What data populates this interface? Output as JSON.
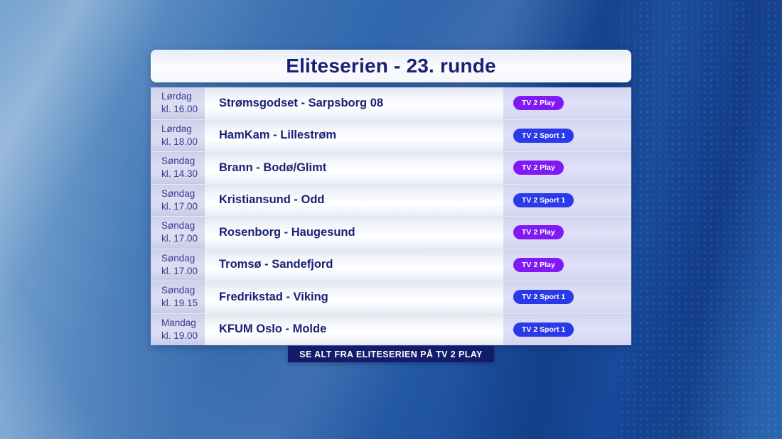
{
  "title": "Eliteserien - 23. runde",
  "schedule": [
    {
      "day": "Lørdag",
      "time": "kl. 16.00",
      "match": "Strømsgodset - Sarpsborg 08",
      "channel": "TV 2 Play",
      "channel_type": "play"
    },
    {
      "day": "Lørdag",
      "time": "kl. 18.00",
      "match": "HamKam - Lillestrøm",
      "channel": "TV 2 Sport 1",
      "channel_type": "sport1"
    },
    {
      "day": "Søndag",
      "time": "kl. 14.30",
      "match": "Brann - Bodø/Glimt",
      "channel": "TV 2 Play",
      "channel_type": "play"
    },
    {
      "day": "Søndag",
      "time": "kl. 17.00",
      "match": "Kristiansund - Odd",
      "channel": "TV 2 Sport 1",
      "channel_type": "sport1"
    },
    {
      "day": "Søndag",
      "time": "kl. 17.00",
      "match": "Rosenborg - Haugesund",
      "channel": "TV 2 Play",
      "channel_type": "play"
    },
    {
      "day": "Søndag",
      "time": "kl. 17.00",
      "match": "Tromsø - Sandefjord",
      "channel": "TV 2 Play",
      "channel_type": "play"
    },
    {
      "day": "Søndag",
      "time": "kl. 19.15",
      "match": "Fredrikstad - Viking",
      "channel": "TV 2 Sport 1",
      "channel_type": "sport1"
    },
    {
      "day": "Mandag",
      "time": "kl. 19.00",
      "match": "KFUM Oslo - Molde",
      "channel": "TV 2 Sport 1",
      "channel_type": "sport1"
    }
  ],
  "footer": {
    "label": "SE ALT FRA ELITESERIEN PÅ TV 2 PLAY"
  },
  "colors": {
    "play_badge": "#8019f3",
    "sport1_badge": "#2b3ae9",
    "footer_bg": "#131c6b",
    "title_text": "#1b2077",
    "match_text": "#1b2077",
    "day_text": "#363b90"
  }
}
